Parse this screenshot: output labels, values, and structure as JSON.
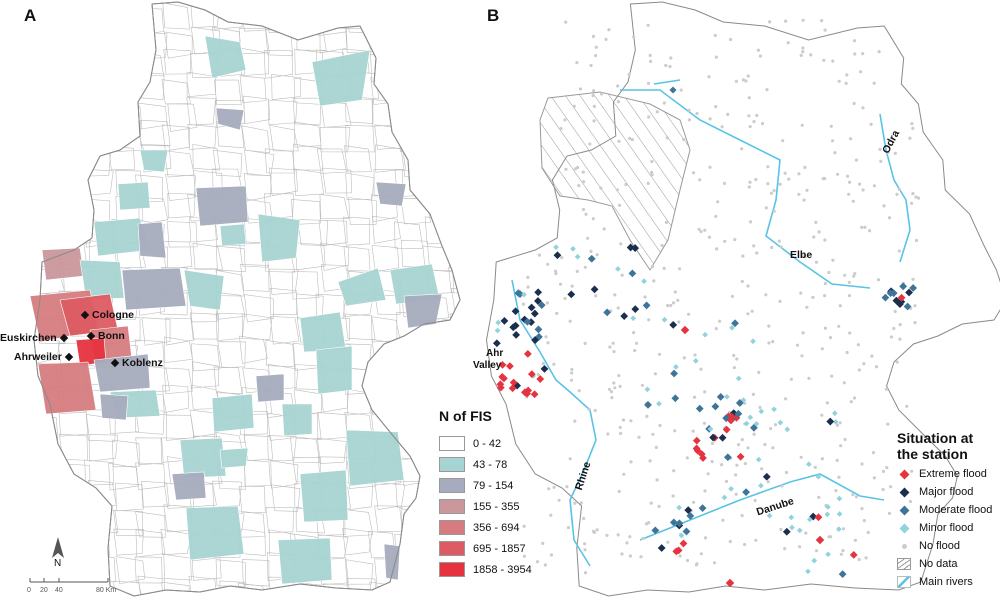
{
  "panels": {
    "a": {
      "letter": "A"
    },
    "b": {
      "letter": "B"
    }
  },
  "legend_a": {
    "title": "N of FIS",
    "classes": [
      {
        "label": "0 - 42",
        "color": "#ffffff"
      },
      {
        "label": "43 - 78",
        "color": "#a6d4d2"
      },
      {
        "label": "79 - 154",
        "color": "#a6acbe"
      },
      {
        "label": "155 - 355",
        "color": "#c9979c"
      },
      {
        "label": "356 - 694",
        "color": "#d67c80"
      },
      {
        "label": "695 - 1857",
        "color": "#dd5b63"
      },
      {
        "label": "1858 - 3954",
        "color": "#e5333f"
      }
    ]
  },
  "cities": [
    {
      "name": "Cologne"
    },
    {
      "name": "Bonn"
    },
    {
      "name": "Euskirchen"
    },
    {
      "name": "Ahrweiler"
    },
    {
      "name": "Koblenz"
    }
  ],
  "scale_bar": {
    "ticks": [
      "0",
      "20",
      "40",
      "80 Km"
    ]
  },
  "north_arrow": {
    "label": "N"
  },
  "legend_b": {
    "title_line1": "Situation at",
    "title_line2": "the station",
    "items": [
      {
        "label": "Extreme flood",
        "symbol": "diamond-icon",
        "color": "#e5333f"
      },
      {
        "label": "Major flood",
        "symbol": "diamond-icon",
        "color": "#1a2f4e"
      },
      {
        "label": "Moderate flood",
        "symbol": "diamond-icon",
        "color": "#3f7499"
      },
      {
        "label": "Minor flood",
        "symbol": "diamond-icon",
        "color": "#8fd3dc"
      },
      {
        "label": "No flood",
        "symbol": "dot-icon",
        "color": "#cccccc"
      },
      {
        "label": "No data",
        "symbol": "hatch-icon",
        "color": "#999999"
      },
      {
        "label": "Main rivers",
        "symbol": "river-icon",
        "color": "#59c3e6"
      }
    ]
  },
  "rivers": {
    "rhine": "Rhine",
    "elbe": "Elbe",
    "odra": "Odra",
    "danube": "Danube"
  },
  "region_labels": {
    "ahr_line1": "Ahr",
    "ahr_line2": "Valley"
  }
}
